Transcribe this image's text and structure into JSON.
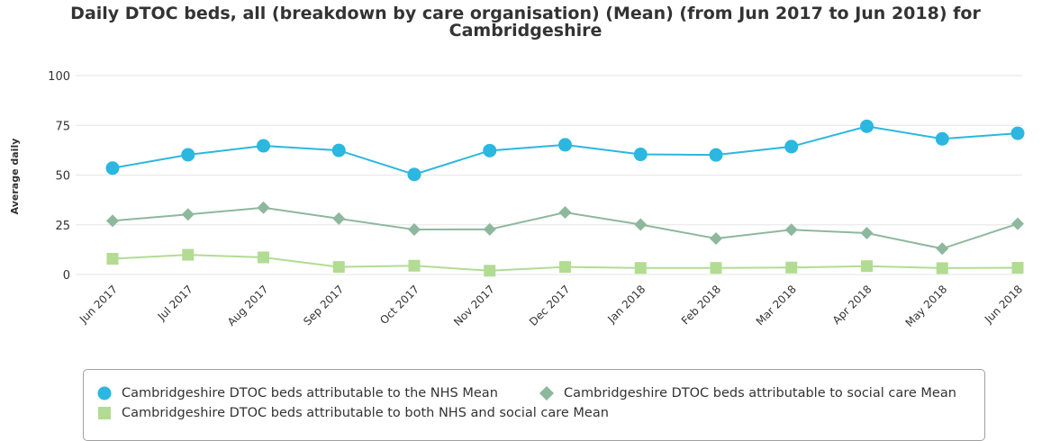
{
  "title_line1": "Daily DTOC beds, all (breakdown by care organisation) (Mean) (from Jun 2017 to Jun 2018) for",
  "title_line2": "Cambridgeshire",
  "chart_data": {
    "type": "line",
    "title": "Daily DTOC beds, all (breakdown by care organisation) (Mean) (from Jun 2017 to Jun 2018) for Cambridgeshire",
    "xlabel": "",
    "ylabel": "Average daily",
    "ylim": [
      0,
      100
    ],
    "yticks": [
      0,
      25,
      50,
      75,
      100
    ],
    "grid": true,
    "legend_position": "bottom",
    "categories": [
      "Jun 2017",
      "Jul 2017",
      "Aug 2017",
      "Sep 2017",
      "Oct 2017",
      "Nov 2017",
      "Dec 2017",
      "Jan 2018",
      "Feb 2018",
      "Mar 2018",
      "Apr 2018",
      "May 2018",
      "Jun 2018"
    ],
    "series": [
      {
        "name": "Cambridgeshire DTOC beds attributable to the NHS Mean",
        "color": "#2bb7df",
        "marker": "circle",
        "values": [
          53.5,
          60.2,
          64.7,
          62.4,
          50.3,
          62.3,
          65.2,
          60.4,
          60.1,
          64.3,
          74.5,
          68.2,
          71.0
        ]
      },
      {
        "name": "Cambridgeshire DTOC beds attributable to social care Mean",
        "color": "#8db89e",
        "marker": "diamond",
        "values": [
          27.0,
          30.2,
          33.6,
          28.1,
          22.6,
          22.7,
          31.2,
          25.1,
          18.1,
          22.5,
          20.8,
          13.0,
          25.5
        ]
      },
      {
        "name": "Cambridgeshire DTOC beds attributable to both NHS and social care Mean",
        "color": "#b2dc92",
        "marker": "square",
        "values": [
          7.9,
          9.9,
          8.6,
          3.8,
          4.4,
          1.9,
          3.8,
          3.3,
          3.3,
          3.5,
          4.2,
          3.2,
          3.4
        ]
      }
    ]
  }
}
